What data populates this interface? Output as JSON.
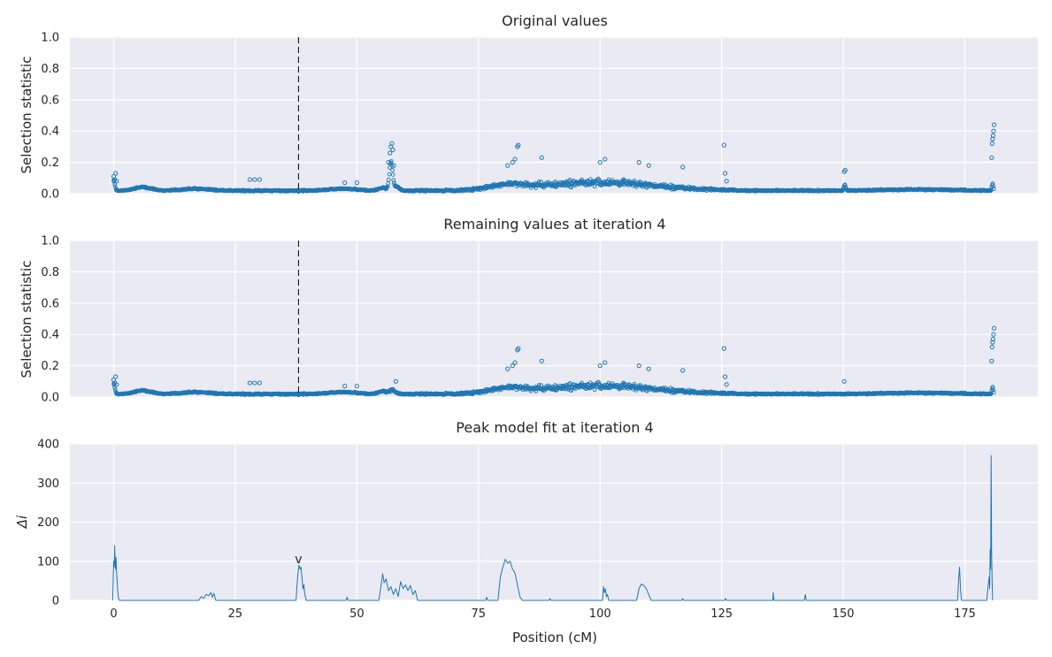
{
  "x_axis": {
    "label": "Position (cM)",
    "ticks": [
      0,
      25,
      50,
      75,
      100,
      125,
      150,
      175
    ],
    "range": [
      -9,
      190
    ]
  },
  "style": {
    "background": "#eaeaf2",
    "grid": "#ffffff",
    "series_color": "#1f77b4",
    "marker_line": "#000000"
  },
  "marker_position": 38,
  "chart_data": [
    {
      "type": "scatter",
      "title": "Original values",
      "ylabel": "Selection statistic",
      "ylim": [
        0,
        1.0
      ],
      "yticks": [
        "0.0",
        "0.2",
        "0.4",
        "0.6",
        "0.8",
        "1.0"
      ],
      "grid": true,
      "dashed_vline_x": 38,
      "features": {
        "x": [
          0,
          0.2,
          0.4,
          0.6,
          28,
          29,
          30,
          47.5,
          50,
          56.5,
          56.8,
          57.0,
          57.2,
          57.4,
          57.6,
          81,
          82,
          82.5,
          83,
          83.2,
          88,
          100,
          101,
          108,
          110,
          117,
          125.5,
          125.7,
          126,
          150.2,
          150.4,
          180.5,
          180.6,
          180.7,
          180.8,
          180.9,
          181.0
        ],
        "y": [
          0.11,
          0.09,
          0.13,
          0.08,
          0.09,
          0.09,
          0.09,
          0.07,
          0.07,
          0.2,
          0.26,
          0.3,
          0.32,
          0.28,
          0.18,
          0.18,
          0.2,
          0.22,
          0.3,
          0.31,
          0.23,
          0.2,
          0.22,
          0.2,
          0.18,
          0.17,
          0.31,
          0.13,
          0.08,
          0.14,
          0.15,
          0.23,
          0.32,
          0.35,
          0.37,
          0.4,
          0.44
        ]
      }
    },
    {
      "type": "scatter",
      "title": "Remaining values at iteration 4",
      "ylabel": "Selection statistic",
      "ylim": [
        0,
        1.0
      ],
      "yticks": [
        "0.0",
        "0.2",
        "0.4",
        "0.6",
        "0.8",
        "1.0"
      ],
      "grid": true,
      "dashed_vline_x": 38,
      "features": {
        "x": [
          0,
          0.2,
          0.4,
          0.6,
          28,
          29,
          30,
          47.5,
          50,
          58,
          81,
          82,
          82.5,
          83,
          83.2,
          88,
          100,
          101,
          108,
          110,
          117,
          125.5,
          125.7,
          126,
          150.2,
          180.5,
          180.6,
          180.7,
          180.8,
          180.9,
          181.0
        ],
        "y": [
          0.11,
          0.09,
          0.13,
          0.08,
          0.09,
          0.09,
          0.09,
          0.07,
          0.07,
          0.1,
          0.18,
          0.2,
          0.22,
          0.3,
          0.31,
          0.23,
          0.2,
          0.22,
          0.2,
          0.18,
          0.17,
          0.31,
          0.13,
          0.08,
          0.1,
          0.23,
          0.32,
          0.35,
          0.37,
          0.4,
          0.44
        ]
      }
    },
    {
      "type": "line",
      "title": "Peak model fit at iteration 4",
      "ylabel": "Δi",
      "ylim": [
        0,
        400
      ],
      "yticks": [
        "0",
        "100",
        "200",
        "300",
        "400"
      ],
      "grid": true,
      "annotation": {
        "text": "v",
        "x": 38,
        "y": 102
      },
      "x": [
        -0.2,
        0,
        0.1,
        0.2,
        0.3,
        0.4,
        0.5,
        0.6,
        0.7,
        0.8,
        0.9,
        1.0,
        1.2,
        1.5,
        17.5,
        18,
        18.5,
        19,
        19.5,
        20,
        20.3,
        20.6,
        21,
        37.5,
        37.7,
        37.9,
        38.1,
        38.3,
        38.5,
        38.7,
        38.9,
        39.1,
        39.3,
        39.6,
        47.8,
        48,
        48.2,
        54.5,
        55,
        55.3,
        55.6,
        56,
        56.5,
        57,
        57.5,
        58,
        58.5,
        59,
        59.5,
        60,
        60.5,
        61,
        61.5,
        62,
        62.5,
        76.5,
        76.7,
        76.9,
        79,
        79.5,
        80,
        80.5,
        81,
        81.5,
        82,
        82.5,
        83,
        83.5,
        84,
        89.5,
        89.7,
        89.9,
        100.5,
        100.7,
        100.9,
        101.1,
        101.3,
        101.5,
        101.8,
        107.5,
        108,
        108.5,
        109,
        109.5,
        110,
        110.5,
        116.8,
        117,
        117.2,
        125.6,
        125.8,
        126,
        135.5,
        135.6,
        135.7,
        135.8,
        142,
        142.2,
        142.4,
        173.5,
        173.7,
        173.9,
        174.1,
        174.3,
        179.5,
        179.8,
        180,
        180.1,
        180.2,
        180.3,
        180.4,
        180.5,
        180.6,
        180.7
      ],
      "y": [
        0,
        100,
        85,
        140,
        95,
        80,
        110,
        70,
        50,
        30,
        15,
        5,
        0,
        0,
        0,
        10,
        5,
        15,
        12,
        20,
        8,
        18,
        0,
        0,
        40,
        70,
        90,
        80,
        85,
        60,
        30,
        40,
        15,
        0,
        0,
        8,
        0,
        0,
        40,
        68,
        45,
        55,
        25,
        35,
        15,
        30,
        10,
        48,
        30,
        40,
        25,
        38,
        15,
        25,
        0,
        0,
        8,
        0,
        0,
        60,
        85,
        105,
        95,
        100,
        80,
        70,
        40,
        10,
        0,
        0,
        5,
        0,
        0,
        35,
        20,
        30,
        10,
        15,
        0,
        0,
        30,
        42,
        38,
        30,
        15,
        0,
        0,
        5,
        0,
        0,
        5,
        0,
        0,
        20,
        5,
        0,
        0,
        15,
        0,
        0,
        50,
        85,
        30,
        0,
        0,
        40,
        60,
        30,
        130,
        80,
        370,
        120,
        50,
        0
      ]
    }
  ]
}
